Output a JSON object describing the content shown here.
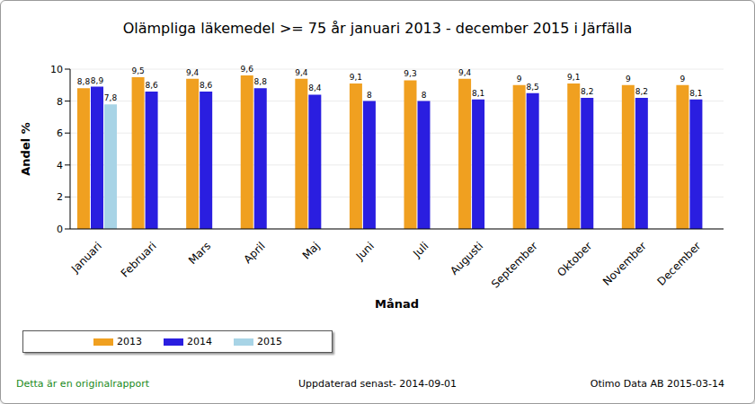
{
  "chart_data": {
    "type": "bar",
    "title": "Olämpliga läkemedel >= 75 år januari 2013 - december 2015 i  Järfälla",
    "x_label": "Månad",
    "y_label": "Andel %",
    "categories": [
      "Januari",
      "Februari",
      "Mars",
      "April",
      "Maj",
      "Juni",
      "Juli",
      "Augusti",
      "September",
      "Oktober",
      "November",
      "December"
    ],
    "series": [
      {
        "name": "2013",
        "color": "#f0a020",
        "values": [
          8.8,
          9.5,
          9.4,
          9.6,
          9.4,
          9.1,
          9.3,
          9.4,
          9,
          9.1,
          9,
          9
        ],
        "value_labels": [
          "8,8",
          "9,5",
          "9,4",
          "9,6",
          "9,4",
          "9,1",
          "9,3",
          "9,4",
          "9",
          "9,1",
          "9",
          "9"
        ]
      },
      {
        "name": "2014",
        "color": "#2a1ee0",
        "values": [
          8.9,
          8.6,
          8.6,
          8.8,
          8.4,
          8,
          8,
          8.1,
          8.5,
          8.2,
          8.2,
          8.1
        ],
        "value_labels": [
          "8,9",
          "8,6",
          "8,6",
          "8,8",
          "8,4",
          "8",
          "8",
          "8,1",
          "8,5",
          "8,2",
          "8,2",
          "8,1"
        ]
      },
      {
        "name": "2015",
        "color": "#a8d4e6",
        "values": [
          7.8,
          null,
          null,
          null,
          null,
          null,
          null,
          null,
          null,
          null,
          null,
          null
        ],
        "value_labels": [
          "7,8",
          null,
          null,
          null,
          null,
          null,
          null,
          null,
          null,
          null,
          null,
          null
        ]
      }
    ],
    "ylim": [
      0,
      10
    ],
    "yticks": [
      0,
      2,
      4,
      6,
      8,
      10
    ],
    "grid": true,
    "data_labels": true,
    "legend": "bottom",
    "annotations": [
      "Detta är en originalrapport",
      "Uppdaterad senast- 2014-09-01",
      "Otimo Data AB 2015-03-14"
    ]
  }
}
